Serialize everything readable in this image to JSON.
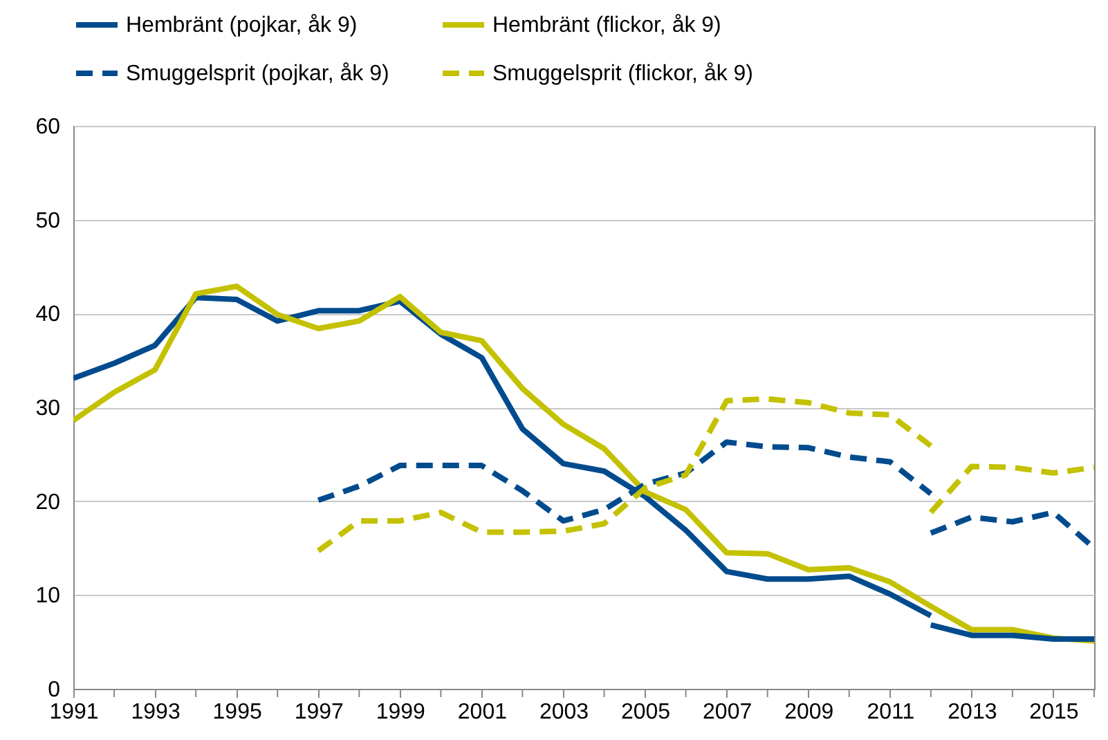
{
  "chart_data": {
    "type": "line",
    "xlim": [
      1991,
      2016
    ],
    "ylim": [
      0,
      60
    ],
    "xticks": [
      1991,
      {
        "value": 1992,
        "label": null
      },
      1993,
      {
        "value": 1994,
        "label": null
      },
      1995,
      {
        "value": 1996,
        "label": null
      },
      1997,
      {
        "value": 1998,
        "label": null
      },
      1999,
      {
        "value": 2000,
        "label": null
      },
      2001,
      {
        "value": 2002,
        "label": null
      },
      2003,
      {
        "value": 2004,
        "label": null
      },
      2005,
      {
        "value": 2006,
        "label": null
      },
      2007,
      {
        "value": 2008,
        "label": null
      },
      2009,
      {
        "value": 2010,
        "label": null
      },
      2011,
      {
        "value": 2012,
        "label": null
      },
      2013,
      {
        "value": 2014,
        "label": null
      },
      2015,
      {
        "value": 2016,
        "label": null
      }
    ],
    "yticks": [
      0,
      10,
      20,
      30,
      40,
      50,
      60
    ],
    "grid": "y",
    "legend": "top",
    "marker": "none",
    "series": [
      {
        "name": "Hembränt (pojkar, åk 9)",
        "color": "#004b8d",
        "line_style": "solid",
        "x": [
          1991,
          1992,
          1993,
          1994,
          1995,
          1996,
          1997,
          1998,
          1999,
          2000,
          2001,
          2002,
          2003,
          2004,
          2005,
          2006,
          2007,
          2008,
          2009,
          2010,
          2011,
          2012
        ],
        "values": [
          33.1,
          34.7,
          36.6,
          41.7,
          41.5,
          39.2,
          40.3,
          40.3,
          41.3,
          37.8,
          35.3,
          27.7,
          24.0,
          23.2,
          20.5,
          16.9,
          12.5,
          11.7,
          11.7,
          12.0,
          10.1,
          7.8
        ]
      },
      {
        "name": "Hembränt (flickor, åk 9)",
        "color": "#c3c100",
        "line_style": "solid",
        "x": [
          1991,
          1992,
          1993,
          1994,
          1995,
          1996,
          1997,
          1998,
          1999,
          2000,
          2001,
          2002,
          2003,
          2004,
          2005,
          2006,
          2007,
          2008,
          2009,
          2010,
          2011,
          2012,
          2013,
          2014,
          2015,
          2016
        ],
        "values": [
          28.6,
          31.6,
          34.0,
          42.1,
          42.9,
          39.9,
          38.4,
          39.2,
          41.8,
          38.0,
          37.1,
          32.0,
          28.2,
          25.6,
          21.0,
          19.1,
          14.5,
          14.4,
          12.7,
          12.9,
          11.4,
          8.8,
          6.3,
          6.3,
          5.4,
          5.1
        ]
      },
      {
        "name": "Smuggelsprit (pojkar, åk 9)",
        "color": "#004b8d",
        "line_style": "dashed",
        "x": [
          1997,
          1998,
          1999,
          2000,
          2001,
          2002,
          2003,
          2004,
          2005,
          2006,
          2007,
          2008,
          2009,
          2010,
          2011,
          2012
        ],
        "values": [
          20.1,
          21.6,
          23.8,
          23.8,
          23.8,
          21.1,
          17.9,
          19.1,
          21.8,
          23.0,
          26.3,
          25.8,
          25.7,
          24.7,
          24.2,
          20.8
        ]
      },
      {
        "name": "Smuggelsprit (flickor, åk 9)",
        "color": "#c3c100",
        "line_style": "dashed",
        "x": [
          1997,
          1998,
          1999,
          2000,
          2001,
          2002,
          2003,
          2004,
          2005,
          2006,
          2007,
          2008,
          2009,
          2010,
          2011,
          2012
        ],
        "values": [
          14.7,
          17.9,
          17.9,
          18.8,
          16.7,
          16.7,
          16.8,
          17.6,
          21.4,
          22.8,
          30.7,
          30.9,
          30.5,
          29.4,
          29.2,
          25.9
        ]
      },
      {
        "color": "#004b8d",
        "line_style": "solid",
        "x": [
          2012,
          2013,
          2014,
          2015,
          2016
        ],
        "values": [
          6.8,
          5.7,
          5.7,
          5.3,
          5.3
        ]
      },
      {
        "color": "#004b8d",
        "line_style": "dashed",
        "x": [
          2012,
          2013,
          2014,
          2015,
          2016
        ],
        "values": [
          16.6,
          18.3,
          17.8,
          18.8,
          15.0
        ]
      },
      {
        "color": "#c3c100",
        "line_style": "dashed",
        "x": [
          2012,
          2013,
          2014,
          2015,
          2016
        ],
        "values": [
          18.8,
          23.7,
          23.6,
          23.0,
          23.6
        ]
      }
    ]
  }
}
